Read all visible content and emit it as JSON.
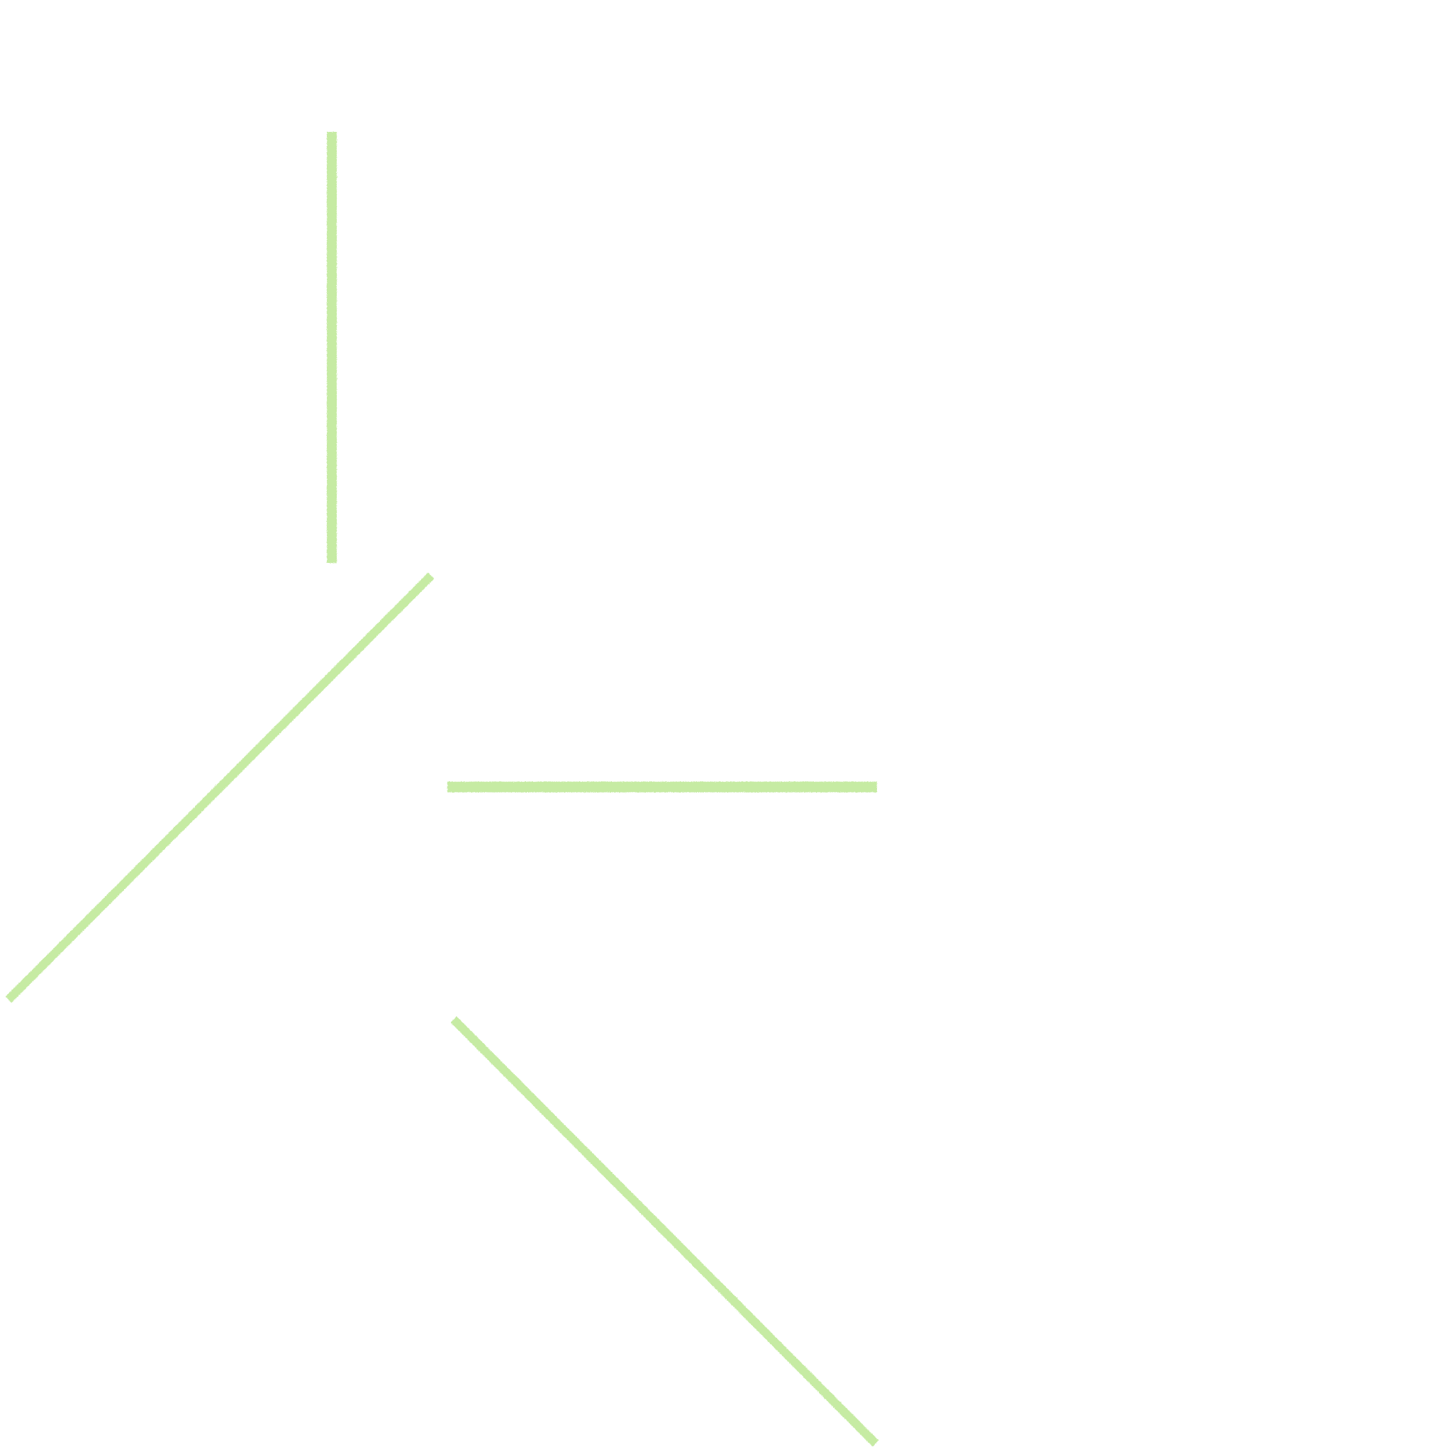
{
  "canvas": {
    "background": "#ffffff",
    "stroke_color": "#c6eba3",
    "stroke_texture": "chalk"
  },
  "strokes": [
    {
      "name": "stroke-vertical-top-left",
      "orientation": "vertical"
    },
    {
      "name": "stroke-diagonal-up-right",
      "orientation": "diagonal-ascending"
    },
    {
      "name": "stroke-horizontal-middle",
      "orientation": "horizontal"
    },
    {
      "name": "stroke-diagonal-down-right",
      "orientation": "diagonal-descending"
    }
  ]
}
